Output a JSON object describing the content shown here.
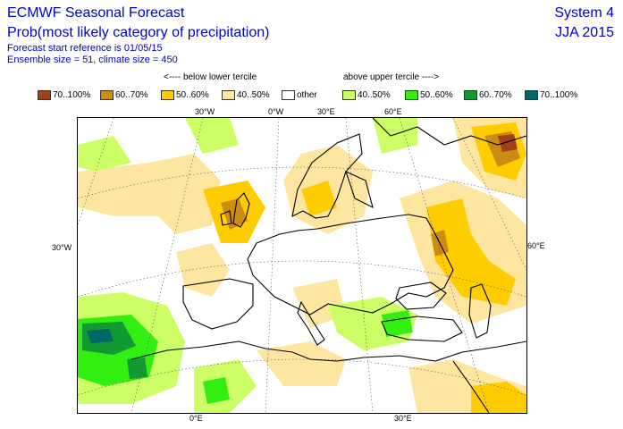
{
  "header": {
    "title": "ECMWF Seasonal Forecast",
    "subtitle": "Prob(most likely category of precipitation)",
    "start_ref": "Forecast start reference is 01/05/15",
    "ensemble": "Ensemble size = 51, climate size = 450",
    "system": "System 4",
    "season": "JJA 2015"
  },
  "legend": {
    "below_label": "<---- below lower tercile",
    "above_label": "above upper tercile ---->",
    "items": [
      {
        "label": "70..100%",
        "color": "#a0411a"
      },
      {
        "label": "60..70%",
        "color": "#cc8c14"
      },
      {
        "label": "50..60%",
        "color": "#ffcc00"
      },
      {
        "label": "40..50%",
        "color": "#ffe6a0"
      },
      {
        "label": "other",
        "color": "#ffffff"
      },
      {
        "label": "40..50%",
        "color": "#ccff66"
      },
      {
        "label": "50..60%",
        "color": "#33ee11"
      },
      {
        "label": "60..70%",
        "color": "#119933"
      },
      {
        "label": "70..100%",
        "color": "#006666"
      }
    ]
  },
  "map": {
    "top_ticks": [
      "30°W",
      "0°W",
      "30°E",
      "60°E"
    ],
    "left_tick": "30°W",
    "right_tick": "60°E",
    "bottom_ticks": [
      "0°E",
      "30°E"
    ]
  }
}
